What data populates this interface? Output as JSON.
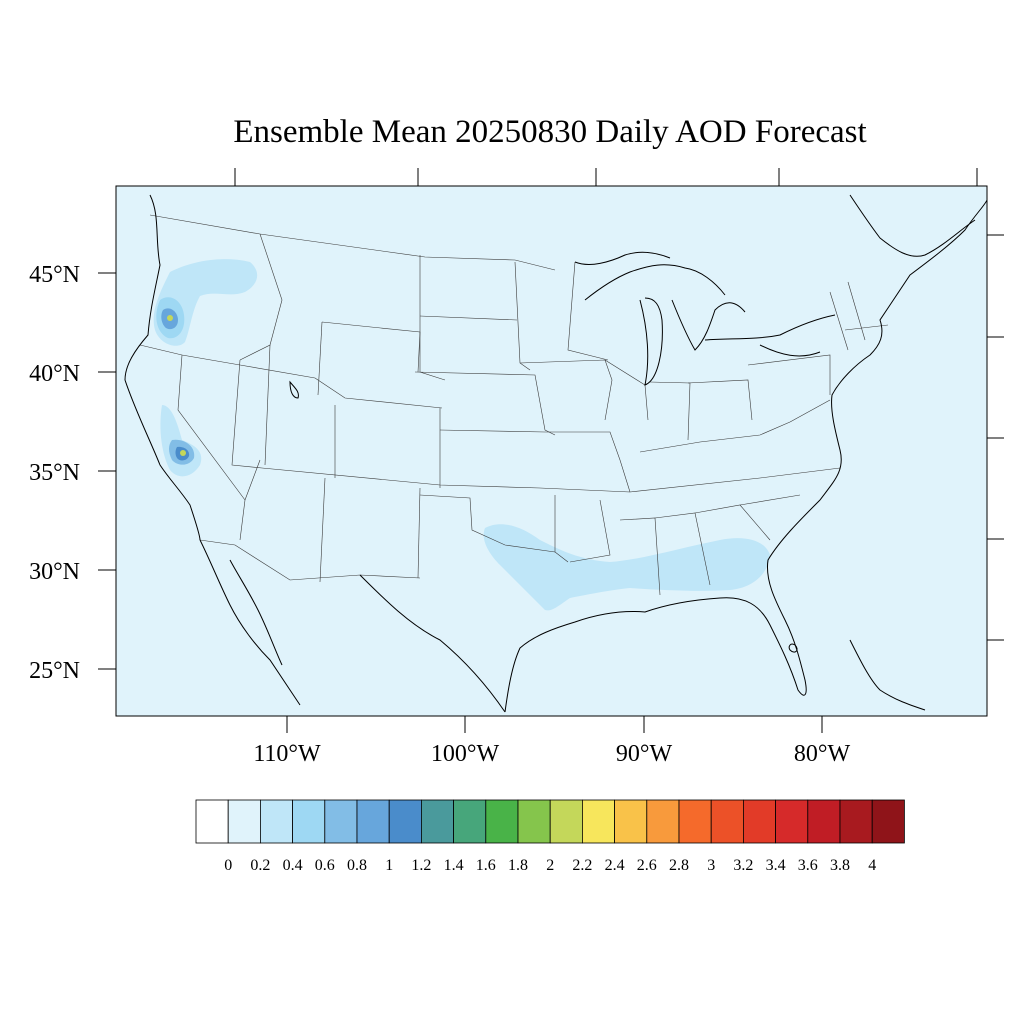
{
  "title": "Ensemble Mean 20250830 Daily AOD Forecast",
  "map": {
    "projection": "lambert-conformal",
    "region": "CONUS",
    "background_color": "#e0f3fb",
    "lat_ticks": [
      "45°N",
      "40°N",
      "35°N",
      "30°N",
      "25°N"
    ],
    "lon_ticks": [
      "110°W",
      "100°W",
      "90°W",
      "80°W"
    ],
    "aod_features": [
      {
        "location": "southern Oregon",
        "peak_level": "2.2"
      },
      {
        "location": "central California (Sierra Nevada)",
        "peak_level": "2.2"
      },
      {
        "location": "Gulf Coast (Texas to Georgia)",
        "peak_level": "0.2"
      },
      {
        "location": "Pacific Northwest",
        "peak_level": "0.2"
      }
    ]
  },
  "colorbar": {
    "labels": [
      "0",
      "0.2",
      "0.4",
      "0.6",
      "0.8",
      "1",
      "1.2",
      "1.4",
      "1.6",
      "1.8",
      "2",
      "2.2",
      "2.4",
      "2.6",
      "2.8",
      "3",
      "3.2",
      "3.4",
      "3.6",
      "3.8",
      "4"
    ],
    "colors": [
      "#ffffff",
      "#e0f3fb",
      "#bfe6f8",
      "#9ed8f3",
      "#82bde6",
      "#67a6dc",
      "#4a8ccb",
      "#4a9a9c",
      "#47a67b",
      "#49b348",
      "#85c54c",
      "#c4d75a",
      "#f7e65c",
      "#f9c249",
      "#f89a3c",
      "#f56a2b",
      "#ec5128",
      "#e23b28",
      "#d62a2a",
      "#c01d25",
      "#a81a1f",
      "#8f1419"
    ]
  }
}
